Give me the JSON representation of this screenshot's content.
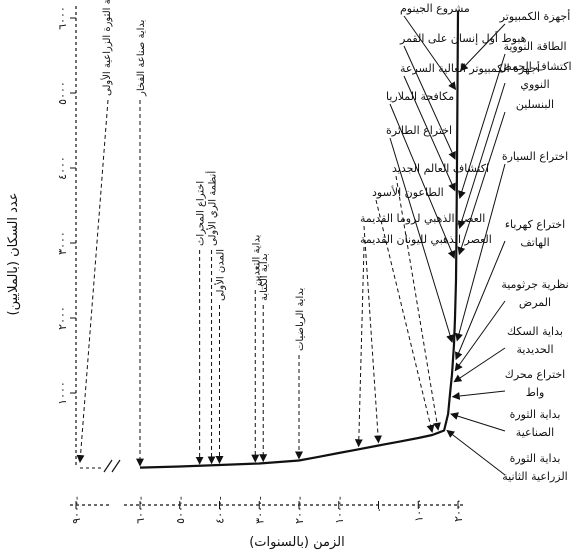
{
  "chart_data": {
    "type": "line",
    "xlabel": "الزمن (بالسنوات)",
    "ylabel": "عدد السكان (بالملايين)",
    "ylim": [
      0,
      6000
    ],
    "yticks": [
      1000,
      2000,
      3000,
      4000,
      5000,
      6000
    ],
    "ytick_labels": [
      "١٠٠٠",
      "٢٠٠٠",
      "٣٠٠٠",
      "٤٠٠٠",
      "٥٠٠٠",
      "٦٠٠٠"
    ],
    "xticks": [
      -9000,
      -6000,
      -5000,
      -4000,
      -3000,
      -2000,
      -1000,
      0,
      1000,
      2000
    ],
    "xtick_labels": [
      "٩٠٠٠-",
      "٦٠٠٠-",
      "٥٠٠٠-",
      "٤٠٠٠-",
      "٣٠٠٠-",
      "٢٠٠٠-",
      "١٠٠٠-",
      "٠",
      "١٠٠٠",
      "٢٠٠٠"
    ],
    "axis_break_between": [
      -9000,
      -6000
    ],
    "series": [
      {
        "x": [
          -6000,
          -5000,
          -4000,
          -3000,
          -2000,
          -1500,
          -1000,
          -500,
          0,
          500,
          1000,
          1350,
          1500,
          1650,
          1750,
          1800,
          1850,
          1900,
          1925,
          1950,
          1960,
          1970,
          1980,
          1990,
          2000
        ],
        "y": [
          5,
          20,
          40,
          60,
          100,
          150,
          200,
          250,
          300,
          350,
          400,
          440,
          470,
          500,
          720,
          1000,
          1250,
          1650,
          2000,
          2500,
          3000,
          3700,
          4400,
          5300,
          6100
        ]
      }
    ],
    "annotations_left": [
      {
        "text": "بداية الثورة الزراعية الأولى",
        "x": -9000
      },
      {
        "text": "بداية صناعة الفخار",
        "x": -6000
      },
      {
        "text": "اختراع المحراث",
        "x": -4500
      },
      {
        "text": "أنظمة الري الأولى",
        "x": -4200
      },
      {
        "text": "المدن الأولى",
        "x": -4000
      },
      {
        "text": "بداية التعدين",
        "x": -3100
      },
      {
        "text": "بداية الكتابة",
        "x": -2900
      },
      {
        "text": "بداية الرياضيات",
        "x": -2000
      }
    ],
    "annotations_middle": [
      {
        "text": "العصر الذهبي لليونان القديمة",
        "x": -500
      },
      {
        "text": "العصر الذهبي لروما القديمة",
        "x": 0
      },
      {
        "text": "الطاعون الأسود",
        "x": 1350
      },
      {
        "text": "اكتشاف العالم الجديد",
        "x": 1500
      }
    ],
    "annotations_top": [
      {
        "text": "مشروع الجينوم",
        "y": 5050
      },
      {
        "text": "هبوط أول إنسان على القمر",
        "y": 4120
      },
      {
        "text": "أجهزة الكمبيوتر العالية السرعة",
        "y": 3700
      },
      {
        "text": "مكافحة الملاريا",
        "y": 2800
      },
      {
        "text": "اختراع الطائرة",
        "y": 1680
      }
    ],
    "annotations_right": [
      {
        "text": [
          "أجهزة الكمبيوتر"
        ],
        "y": 5300
      },
      {
        "text": [
          "الطاقة النووية"
        ],
        "y": 3600
      },
      {
        "text": [
          "اكتشاف الحمض",
          "النووي"
        ],
        "y": 3200
      },
      {
        "text": [
          "البنسلين"
        ],
        "y": 2850
      },
      {
        "text": [
          "اختراع السيارة"
        ],
        "y": 1700
      },
      {
        "text": [
          "اختراع كهرباء",
          "الهاتف"
        ],
        "y": 1450
      },
      {
        "text": [
          "نظرية جرثومية",
          "المرض"
        ],
        "y": 1300
      },
      {
        "text": [
          "بداية السكك",
          "الحديدية"
        ],
        "y": 1150
      },
      {
        "text": [
          "اختراع محرك",
          "واط"
        ],
        "y": 950
      },
      {
        "text": [
          "بداية الثورة",
          "الصناعية"
        ],
        "y": 720
      },
      {
        "text": [
          "بداية الثورة",
          "الزراعية الثانية"
        ],
        "y": 500
      }
    ]
  }
}
